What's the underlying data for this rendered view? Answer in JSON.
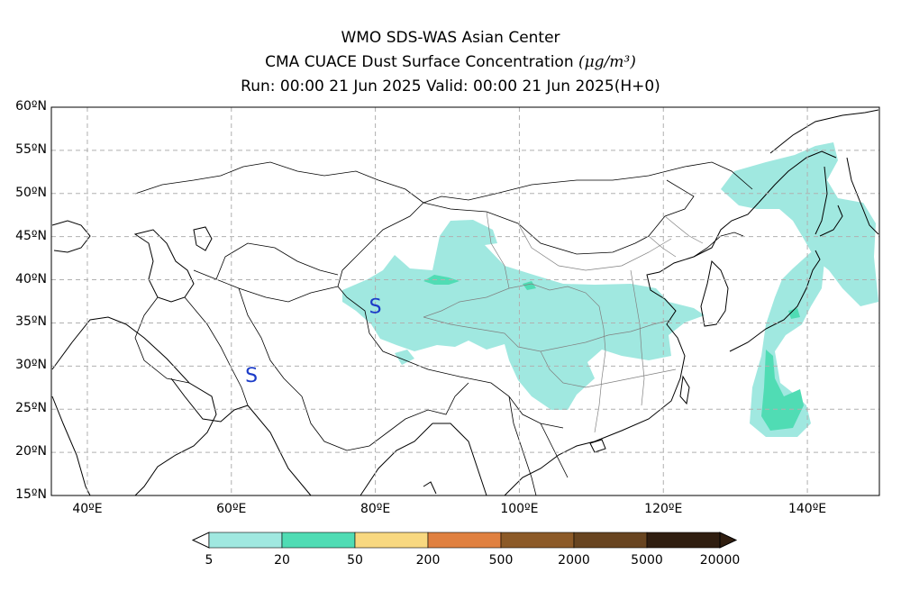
{
  "header": {
    "line1": "WMO SDS-WAS Asian Center",
    "line2_text": "CMA CUACE Dust Surface Concentration ",
    "line2_unit": "(μg/m³)",
    "line3": "Run: 00:00 21 Jun 2025     Valid: 00:00 21 Jun 2025(H+0)"
  },
  "map": {
    "lat_labels": [
      "60ºN",
      "55ºN",
      "50ºN",
      "45ºN",
      "40ºN",
      "35ºN",
      "30ºN",
      "25ºN",
      "20ºN",
      "15ºN"
    ],
    "lon_labels": [
      "40ºE",
      "60ºE",
      "80ºE",
      "100ºE",
      "120ºE",
      "140ºE"
    ],
    "lat_range": [
      15,
      60
    ],
    "lon_range": [
      35,
      150
    ],
    "lat_ticks": [
      60,
      55,
      50,
      45,
      40,
      35,
      30,
      25,
      20,
      15
    ],
    "lon_ticks": [
      40,
      60,
      80,
      100,
      120,
      140
    ],
    "grid": true,
    "storm_markers": [
      {
        "label": "S",
        "lon": 80.0,
        "lat": 37.0
      },
      {
        "label": "S",
        "lon": 62.8,
        "lat": 29.0
      }
    ]
  },
  "colorbar": {
    "ticks": [
      "5",
      "20",
      "50",
      "200",
      "500",
      "2000",
      "5000",
      "20000"
    ],
    "colors": [
      "#a0e8e0",
      "#50dcb4",
      "#f8d880",
      "#e08040",
      "#8c5a28",
      "#684420",
      "#301e10"
    ]
  },
  "colors": {
    "dust_level1": "#a0e8e0",
    "dust_level2": "#50dcb4",
    "marker": "#1c3cc8"
  }
}
